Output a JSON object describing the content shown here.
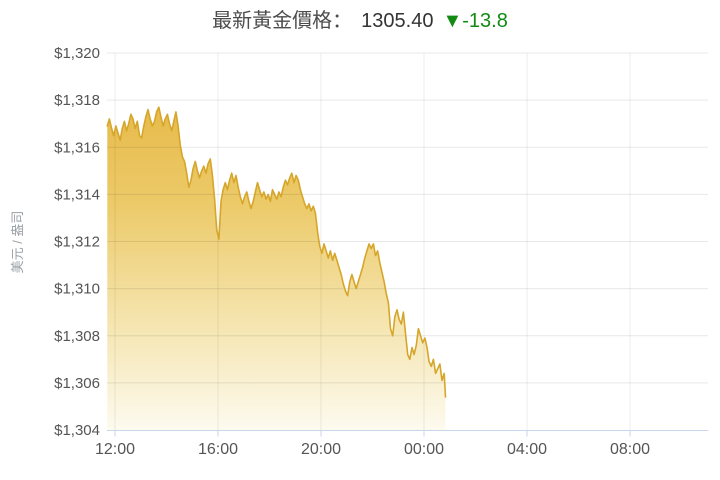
{
  "header": {
    "label": "最新黃金價格：",
    "price": "1305.40",
    "change": "▼-13.8",
    "change_color": "#118b11"
  },
  "chart_data": {
    "type": "area",
    "title": "最新黃金價格",
    "ylabel": "美元 / 盎司",
    "xlabel": "",
    "grid": true,
    "legend": "none",
    "ylim": [
      1304,
      1320
    ],
    "xlim_minutes": [
      701,
      2102
    ],
    "line_color": "#d6a62a",
    "fill_gradient": [
      "#e5b23a",
      "#ecca69",
      "#f5e5b0",
      "#fdfaef"
    ],
    "grid_color_h": "rgba(0,0,0,0.09)",
    "grid_color_v": "rgba(0,0,0,0.07)",
    "axis_color": "#c9d5e8",
    "tick_label_color": "#555555",
    "ylabel_color": "#9aa0a6",
    "y_ticks": [
      {
        "value": 1320,
        "label": "$1,320"
      },
      {
        "value": 1318,
        "label": "$1,318"
      },
      {
        "value": 1316,
        "label": "$1,316"
      },
      {
        "value": 1314,
        "label": "$1,314"
      },
      {
        "value": 1312,
        "label": "$1,312"
      },
      {
        "value": 1310,
        "label": "$1,310"
      },
      {
        "value": 1308,
        "label": "$1,308"
      },
      {
        "value": 1306,
        "label": "$1,306"
      },
      {
        "value": 1304,
        "label": "$1,304"
      }
    ],
    "x_ticks": [
      {
        "minute": 720,
        "label": "12:00"
      },
      {
        "minute": 960,
        "label": "16:00"
      },
      {
        "minute": 1200,
        "label": "20:00"
      },
      {
        "minute": 1440,
        "label": "00:00"
      },
      {
        "minute": 1680,
        "label": "04:00"
      },
      {
        "minute": 1920,
        "label": "08:00"
      }
    ],
    "series": [
      {
        "name": "gold_price_usd_per_oz",
        "points": [
          [
            702,
            1316.9
          ],
          [
            707,
            1317.2
          ],
          [
            712,
            1316.8
          ],
          [
            717,
            1316.5
          ],
          [
            722,
            1316.9
          ],
          [
            727,
            1316.6
          ],
          [
            732,
            1316.3
          ],
          [
            737,
            1316.8
          ],
          [
            742,
            1317.1
          ],
          [
            747,
            1316.7
          ],
          [
            752,
            1317.0
          ],
          [
            757,
            1317.4
          ],
          [
            762,
            1317.2
          ],
          [
            767,
            1316.8
          ],
          [
            772,
            1317.1
          ],
          [
            777,
            1316.5
          ],
          [
            782,
            1316.4
          ],
          [
            787,
            1316.9
          ],
          [
            792,
            1317.3
          ],
          [
            797,
            1317.6
          ],
          [
            802,
            1317.2
          ],
          [
            807,
            1316.9
          ],
          [
            812,
            1317.1
          ],
          [
            817,
            1317.5
          ],
          [
            822,
            1317.7
          ],
          [
            827,
            1317.3
          ],
          [
            832,
            1316.9
          ],
          [
            837,
            1317.2
          ],
          [
            842,
            1317.4
          ],
          [
            847,
            1317.0
          ],
          [
            852,
            1316.7
          ],
          [
            857,
            1317.1
          ],
          [
            862,
            1317.5
          ],
          [
            867,
            1316.9
          ],
          [
            872,
            1316.1
          ],
          [
            877,
            1315.6
          ],
          [
            882,
            1315.4
          ],
          [
            887,
            1314.9
          ],
          [
            892,
            1314.3
          ],
          [
            897,
            1314.6
          ],
          [
            902,
            1315.1
          ],
          [
            907,
            1315.4
          ],
          [
            912,
            1315.0
          ],
          [
            917,
            1314.7
          ],
          [
            922,
            1315.0
          ],
          [
            927,
            1315.2
          ],
          [
            932,
            1314.9
          ],
          [
            937,
            1315.3
          ],
          [
            942,
            1315.5
          ],
          [
            947,
            1314.8
          ],
          [
            952,
            1313.8
          ],
          [
            957,
            1312.5
          ],
          [
            962,
            1312.1
          ],
          [
            967,
            1313.7
          ],
          [
            972,
            1314.2
          ],
          [
            977,
            1314.5
          ],
          [
            982,
            1314.2
          ],
          [
            987,
            1314.6
          ],
          [
            992,
            1314.9
          ],
          [
            997,
            1314.5
          ],
          [
            1002,
            1314.8
          ],
          [
            1007,
            1314.3
          ],
          [
            1012,
            1313.9
          ],
          [
            1017,
            1313.6
          ],
          [
            1022,
            1313.9
          ],
          [
            1027,
            1314.1
          ],
          [
            1032,
            1313.7
          ],
          [
            1037,
            1313.4
          ],
          [
            1042,
            1313.7
          ],
          [
            1047,
            1314.1
          ],
          [
            1052,
            1314.5
          ],
          [
            1057,
            1314.2
          ],
          [
            1062,
            1313.9
          ],
          [
            1067,
            1314.1
          ],
          [
            1072,
            1313.8
          ],
          [
            1077,
            1314.0
          ],
          [
            1082,
            1313.7
          ],
          [
            1087,
            1314.2
          ],
          [
            1092,
            1314.0
          ],
          [
            1097,
            1313.8
          ],
          [
            1102,
            1314.1
          ],
          [
            1107,
            1313.9
          ],
          [
            1112,
            1314.3
          ],
          [
            1117,
            1314.6
          ],
          [
            1122,
            1314.4
          ],
          [
            1127,
            1314.7
          ],
          [
            1132,
            1314.9
          ],
          [
            1137,
            1314.5
          ],
          [
            1142,
            1314.8
          ],
          [
            1147,
            1314.6
          ],
          [
            1152,
            1314.2
          ],
          [
            1157,
            1313.9
          ],
          [
            1162,
            1313.6
          ],
          [
            1167,
            1313.4
          ],
          [
            1172,
            1313.6
          ],
          [
            1177,
            1313.3
          ],
          [
            1182,
            1313.5
          ],
          [
            1187,
            1313.2
          ],
          [
            1192,
            1312.4
          ],
          [
            1197,
            1311.8
          ],
          [
            1202,
            1311.5
          ],
          [
            1207,
            1311.9
          ],
          [
            1212,
            1311.6
          ],
          [
            1217,
            1311.3
          ],
          [
            1222,
            1311.6
          ],
          [
            1227,
            1311.2
          ],
          [
            1232,
            1311.5
          ],
          [
            1237,
            1311.2
          ],
          [
            1242,
            1310.9
          ],
          [
            1247,
            1310.6
          ],
          [
            1252,
            1310.2
          ],
          [
            1257,
            1309.9
          ],
          [
            1262,
            1309.7
          ],
          [
            1267,
            1310.3
          ],
          [
            1272,
            1310.6
          ],
          [
            1277,
            1310.3
          ],
          [
            1282,
            1310.0
          ],
          [
            1287,
            1310.3
          ],
          [
            1292,
            1310.6
          ],
          [
            1297,
            1310.9
          ],
          [
            1302,
            1311.3
          ],
          [
            1307,
            1311.6
          ],
          [
            1312,
            1311.9
          ],
          [
            1317,
            1311.7
          ],
          [
            1322,
            1311.9
          ],
          [
            1327,
            1311.4
          ],
          [
            1332,
            1311.6
          ],
          [
            1337,
            1311.1
          ],
          [
            1342,
            1310.7
          ],
          [
            1347,
            1310.3
          ],
          [
            1352,
            1309.8
          ],
          [
            1357,
            1309.4
          ],
          [
            1362,
            1308.3
          ],
          [
            1367,
            1308.0
          ],
          [
            1372,
            1308.8
          ],
          [
            1377,
            1309.1
          ],
          [
            1382,
            1308.7
          ],
          [
            1387,
            1308.5
          ],
          [
            1392,
            1309.0
          ],
          [
            1397,
            1308.1
          ],
          [
            1402,
            1307.2
          ],
          [
            1407,
            1307.0
          ],
          [
            1412,
            1307.5
          ],
          [
            1417,
            1307.2
          ],
          [
            1422,
            1307.6
          ],
          [
            1427,
            1308.3
          ],
          [
            1432,
            1308.0
          ],
          [
            1437,
            1307.7
          ],
          [
            1442,
            1307.9
          ],
          [
            1447,
            1307.5
          ],
          [
            1452,
            1306.9
          ],
          [
            1457,
            1306.7
          ],
          [
            1462,
            1307.0
          ],
          [
            1467,
            1306.4
          ],
          [
            1472,
            1306.6
          ],
          [
            1477,
            1306.8
          ],
          [
            1482,
            1306.1
          ],
          [
            1487,
            1306.4
          ],
          [
            1490,
            1305.4
          ]
        ]
      }
    ]
  }
}
